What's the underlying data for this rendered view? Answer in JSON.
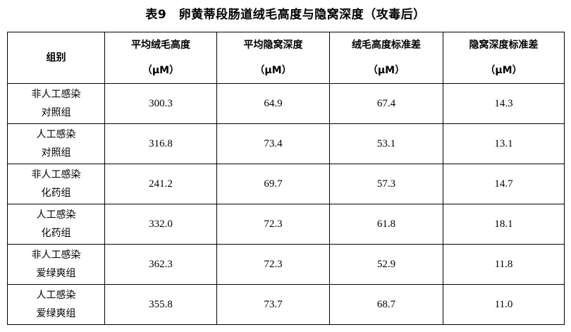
{
  "title": "表9　卵黄蒂段肠道绒毛高度与隐窝深度（攻毒后）",
  "headers": {
    "group": "组别",
    "unit": "（μM）",
    "cols": [
      "平均绒毛高度",
      "平均隐窝深度",
      "绒毛高度标准差",
      "隐窝深度标准差"
    ]
  },
  "rows": [
    {
      "g1": "非人工感染",
      "g2": "对照组",
      "v": [
        "300.3",
        "64.9",
        "67.4",
        "14.3"
      ]
    },
    {
      "g1": "人工感染",
      "g2": "对照组",
      "v": [
        "316.8",
        "73.4",
        "53.1",
        "13.1"
      ]
    },
    {
      "g1": "非人工感染",
      "g2": "化药组",
      "v": [
        "241.2",
        "69.7",
        "57.3",
        "14.7"
      ]
    },
    {
      "g1": "人工感染",
      "g2": "化药组",
      "v": [
        "332.0",
        "72.3",
        "61.8",
        "18.1"
      ]
    },
    {
      "g1": "非人工感染",
      "g2": "爱绿爽组",
      "v": [
        "362.3",
        "72.3",
        "52.9",
        "11.8"
      ]
    },
    {
      "g1": "人工感染",
      "g2": "爱绿爽组",
      "v": [
        "355.8",
        "73.7",
        "68.7",
        "11.0"
      ]
    }
  ]
}
